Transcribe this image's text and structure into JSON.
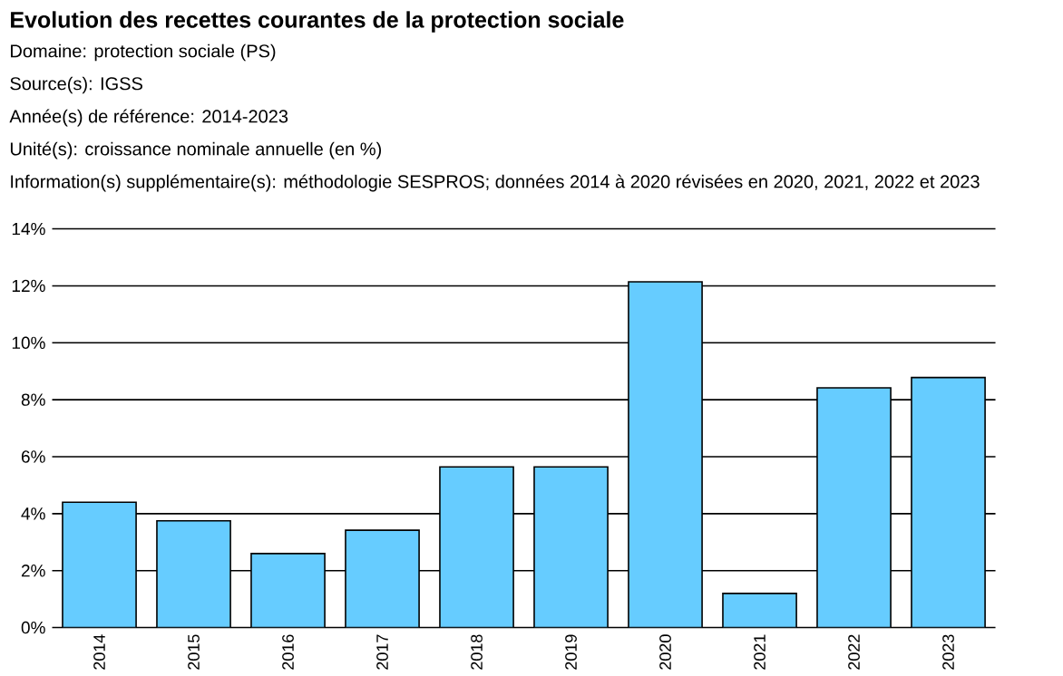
{
  "chart_data": {
    "type": "bar",
    "title": "Evolution des recettes courantes de la protection sociale",
    "annotations": [
      "Domaine: protection sociale (PS)",
      "Source(s): IGSS",
      "Année(s) de référence: 2014-2023",
      "Unité(s): croissance nominale annuelle (en %)",
      "Information(s) supplémentaire(s): méthodologie SESPROS; données 2014 à 2020 révisées en 2020, 2021, 2022 et 2023"
    ],
    "categories": [
      "2014",
      "2015",
      "2016",
      "2017",
      "2018",
      "2019",
      "2020",
      "2021",
      "2022",
      "2023"
    ],
    "values": [
      4.4,
      3.75,
      2.6,
      3.42,
      5.64,
      5.64,
      12.14,
      1.2,
      8.42,
      8.78
    ],
    "color": "#66ccff",
    "ylim": [
      0,
      14
    ],
    "yticks": [
      {
        "value": 0,
        "label": "0%"
      },
      {
        "value": 2,
        "label": "2%"
      },
      {
        "value": 4,
        "label": "4%"
      },
      {
        "value": 6,
        "label": "6%"
      },
      {
        "value": 8,
        "label": "8%"
      },
      {
        "value": 10,
        "label": "10%"
      },
      {
        "value": 12,
        "label": "12%"
      },
      {
        "value": 14,
        "label": "14%"
      }
    ],
    "grid": "y"
  }
}
